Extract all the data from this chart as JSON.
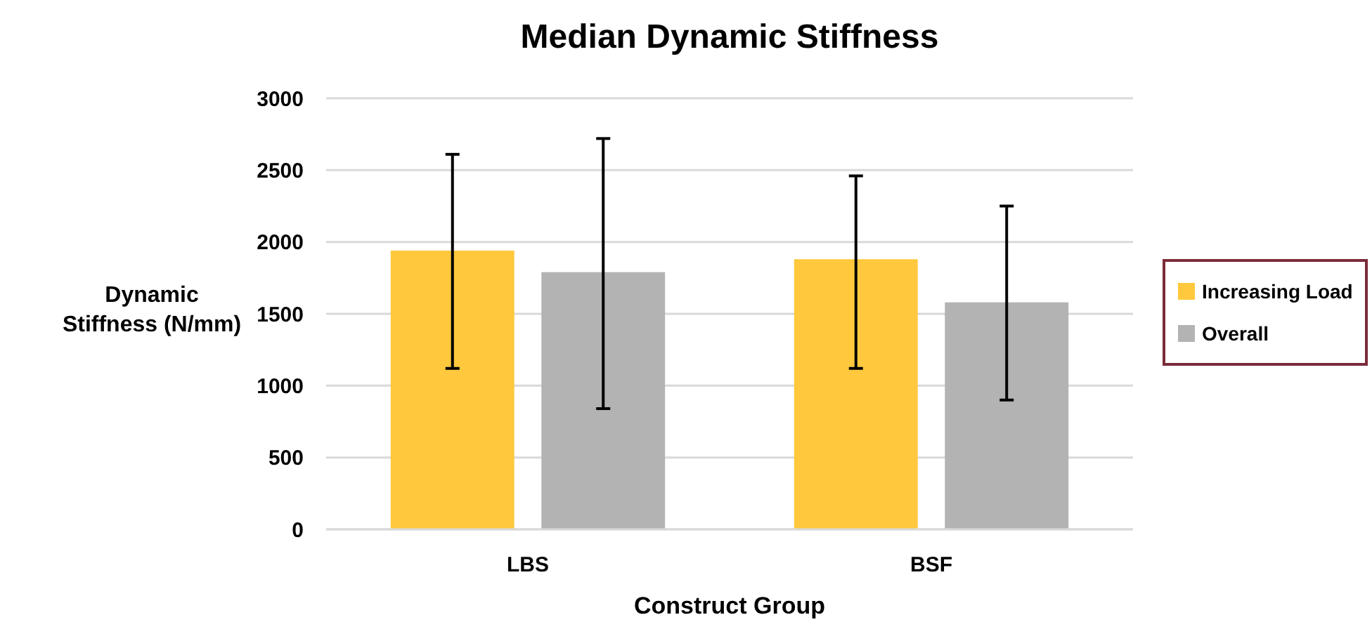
{
  "chart_data": {
    "type": "bar",
    "title": "Median Dynamic Stiffness",
    "xlabel": "Construct Group",
    "ylabel": "Dynamic Stiffness (N/mm)",
    "categories": [
      "LBS",
      "BSF"
    ],
    "series": [
      {
        "name": "Increasing Load",
        "color": "#ffc83d",
        "values": [
          1940,
          1880
        ],
        "errors": [
          [
            1120,
            2610
          ],
          [
            1120,
            2460
          ]
        ]
      },
      {
        "name": "Overall",
        "color": "#b3b3b3",
        "values": [
          1790,
          1580
        ],
        "errors": [
          [
            840,
            2720
          ],
          [
            900,
            2250
          ]
        ]
      }
    ],
    "ylim": [
      0,
      3000
    ],
    "yticks": [
      0,
      500,
      1000,
      1500,
      2000,
      2500,
      3000
    ],
    "grid": "y",
    "legend": "right"
  }
}
